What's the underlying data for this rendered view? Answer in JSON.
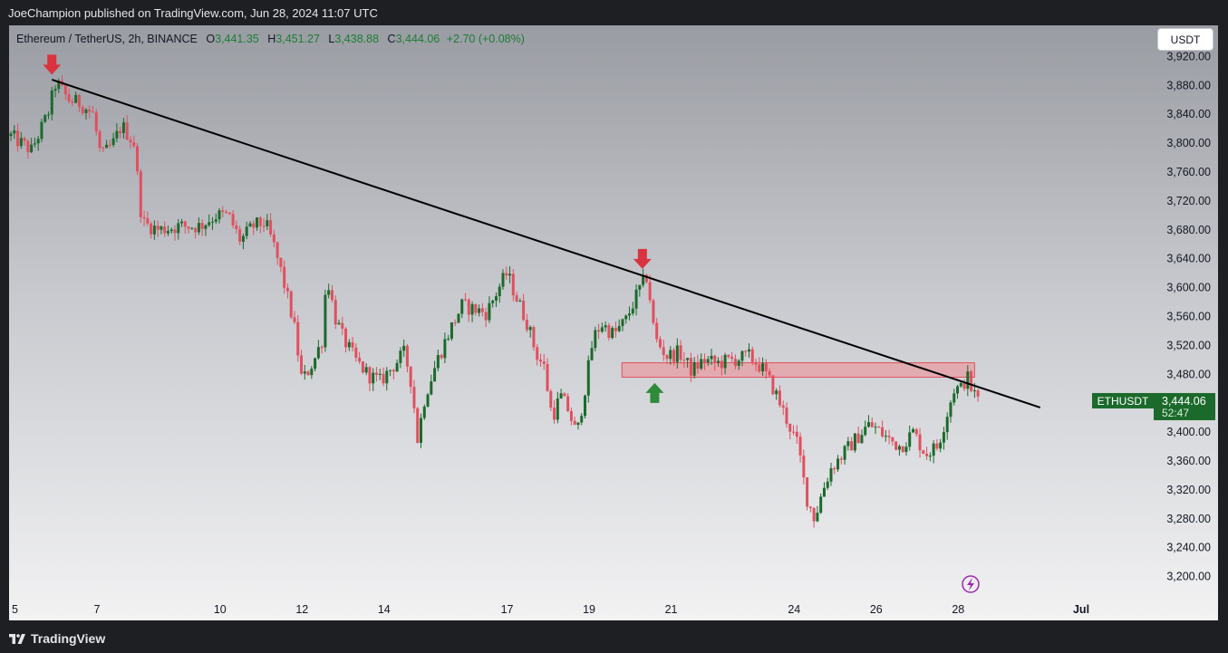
{
  "header": {
    "publisher": "JoeChampion published on TradingView.com, Jun 28, 2024 11:07 UTC"
  },
  "legend": {
    "symbol": "Ethereum / TetherUS, 2h, BINANCE",
    "open_label": "O",
    "open": "3,441.35",
    "high_label": "H",
    "high": "3,451.27",
    "low_label": "L",
    "low": "3,438.88",
    "close_label": "C",
    "close": "3,444.06",
    "change": "+2.70 (+0.08%)"
  },
  "quote_button": "USDT",
  "price_tag": {
    "symbol": "ETHUSDT",
    "price": "3,444.06",
    "countdown": "52:47"
  },
  "footer": {
    "brand": "TradingView"
  },
  "colors": {
    "up": "#1b6a2b",
    "down": "#e0505f",
    "trendline": "#000000",
    "zone_fill": "#f08a92",
    "zone_border": "#e0505f",
    "marker_down": "#d9333f",
    "marker_up": "#2e8b3a",
    "price_tag": "#1b6a2b"
  },
  "chart_data": {
    "type": "candlestick",
    "symbol": "ETHUSDT",
    "interval": "2h",
    "y_ticks": [
      "3,920.00",
      "3,880.00",
      "3,840.00",
      "3,800.00",
      "3,760.00",
      "3,720.00",
      "3,680.00",
      "3,640.00",
      "3,600.00",
      "3,560.00",
      "3,520.00",
      "3,480.00",
      "3,400.00",
      "3,360.00",
      "3,320.00",
      "3,280.00",
      "3,240.00",
      "3,200.00"
    ],
    "y_tick_values": [
      3920,
      3880,
      3840,
      3800,
      3760,
      3720,
      3680,
      3640,
      3600,
      3560,
      3520,
      3480,
      3400,
      3360,
      3320,
      3280,
      3240,
      3200
    ],
    "ylim": [
      3190,
      3935
    ],
    "x_ticks": [
      {
        "label": "5",
        "day": 5
      },
      {
        "label": "7",
        "day": 7
      },
      {
        "label": "10",
        "day": 10
      },
      {
        "label": "12",
        "day": 12
      },
      {
        "label": "14",
        "day": 14
      },
      {
        "label": "17",
        "day": 17
      },
      {
        "label": "19",
        "day": 19
      },
      {
        "label": "21",
        "day": 21
      },
      {
        "label": "24",
        "day": 24
      },
      {
        "label": "26",
        "day": 26
      },
      {
        "label": "28",
        "day": 28
      },
      {
        "label": "Jul",
        "day": 31
      }
    ],
    "path_points": [
      [
        4.9,
        3810
      ],
      [
        5.4,
        3790
      ],
      [
        5.8,
        3840
      ],
      [
        6.0,
        3885
      ],
      [
        6.3,
        3860
      ],
      [
        6.6,
        3855
      ],
      [
        6.9,
        3840
      ],
      [
        7.1,
        3780
      ],
      [
        7.4,
        3800
      ],
      [
        7.6,
        3825
      ],
      [
        7.9,
        3800
      ],
      [
        8.1,
        3690
      ],
      [
        8.5,
        3680
      ],
      [
        9.0,
        3685
      ],
      [
        9.5,
        3685
      ],
      [
        9.9,
        3700
      ],
      [
        10.2,
        3700
      ],
      [
        10.5,
        3665
      ],
      [
        10.8,
        3685
      ],
      [
        11.1,
        3690
      ],
      [
        11.3,
        3660
      ],
      [
        11.5,
        3620
      ],
      [
        11.8,
        3550
      ],
      [
        12.0,
        3470
      ],
      [
        12.3,
        3500
      ],
      [
        12.5,
        3530
      ],
      [
        12.6,
        3620
      ],
      [
        12.8,
        3560
      ],
      [
        13.0,
        3530
      ],
      [
        13.3,
        3500
      ],
      [
        13.6,
        3480
      ],
      [
        13.9,
        3470
      ],
      [
        14.2,
        3490
      ],
      [
        14.5,
        3510
      ],
      [
        14.7,
        3460
      ],
      [
        14.8,
        3385
      ],
      [
        15.0,
        3450
      ],
      [
        15.3,
        3500
      ],
      [
        15.6,
        3540
      ],
      [
        15.9,
        3575
      ],
      [
        16.2,
        3570
      ],
      [
        16.5,
        3565
      ],
      [
        16.8,
        3600
      ],
      [
        17.0,
        3620
      ],
      [
        17.2,
        3590
      ],
      [
        17.5,
        3550
      ],
      [
        17.7,
        3510
      ],
      [
        17.9,
        3490
      ],
      [
        18.1,
        3420
      ],
      [
        18.3,
        3450
      ],
      [
        18.5,
        3430
      ],
      [
        18.7,
        3395
      ],
      [
        18.9,
        3460
      ],
      [
        19.1,
        3530
      ],
      [
        19.3,
        3550
      ],
      [
        19.6,
        3535
      ],
      [
        19.9,
        3555
      ],
      [
        20.2,
        3595
      ],
      [
        20.4,
        3615
      ],
      [
        20.5,
        3580
      ],
      [
        20.6,
        3530
      ],
      [
        20.9,
        3505
      ],
      [
        21.2,
        3510
      ],
      [
        21.5,
        3485
      ],
      [
        21.8,
        3500
      ],
      [
        22.1,
        3495
      ],
      [
        22.5,
        3500
      ],
      [
        22.9,
        3505
      ],
      [
        23.2,
        3490
      ],
      [
        23.5,
        3460
      ],
      [
        23.8,
        3420
      ],
      [
        24.1,
        3380
      ],
      [
        24.3,
        3310
      ],
      [
        24.5,
        3280
      ],
      [
        24.7,
        3320
      ],
      [
        24.9,
        3350
      ],
      [
        25.2,
        3370
      ],
      [
        25.5,
        3390
      ],
      [
        25.8,
        3410
      ],
      [
        26.0,
        3405
      ],
      [
        26.3,
        3390
      ],
      [
        26.6,
        3380
      ],
      [
        26.9,
        3400
      ],
      [
        27.2,
        3370
      ],
      [
        27.5,
        3380
      ],
      [
        27.7,
        3420
      ],
      [
        27.9,
        3460
      ],
      [
        28.1,
        3460
      ],
      [
        28.2,
        3480
      ],
      [
        28.35,
        3455
      ],
      [
        28.5,
        3445
      ]
    ],
    "trendline": {
      "start": {
        "day": 5.9,
        "price": 3888
      },
      "end": {
        "day": 30.0,
        "price": 3434
      }
    },
    "resistance_zone": {
      "day_from": 19.8,
      "day_to": 28.4,
      "price_low": 3476,
      "price_high": 3496
    },
    "markers": [
      {
        "type": "down-arrow",
        "day": 5.9,
        "price": 3895
      },
      {
        "type": "down-arrow",
        "day": 20.3,
        "price": 3626
      },
      {
        "type": "up-arrow",
        "day": 20.6,
        "price": 3468
      }
    ],
    "last_price": 3444.06
  }
}
